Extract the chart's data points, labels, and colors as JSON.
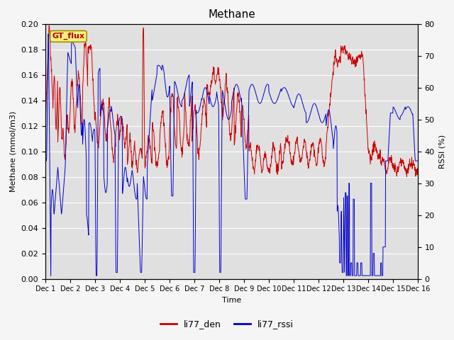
{
  "title": "Methane",
  "ylabel_left": "Methane (mmol/m3)",
  "ylabel_right": "RSSI (%)",
  "xlabel": "Time",
  "ylim_left": [
    0.0,
    0.2
  ],
  "ylim_right": [
    0,
    80
  ],
  "yticks_left": [
    0.0,
    0.02,
    0.04,
    0.06,
    0.08,
    0.1,
    0.12,
    0.14,
    0.16,
    0.18,
    0.2
  ],
  "yticks_right": [
    0,
    10,
    20,
    30,
    40,
    50,
    60,
    70,
    80
  ],
  "xtick_labels": [
    "Dec 1",
    "Dec 2",
    "Dec 3",
    "Dec 4",
    "Dec 5",
    "Dec 6",
    "Dec 7",
    "Dec 8",
    "Dec 9",
    "Dec 10",
    "Dec 11",
    "Dec 12",
    "Dec 13",
    "Dec 14",
    "Dec 15",
    "Dec 16"
  ],
  "color_red": "#cc0000",
  "color_blue": "#0000cc",
  "gt_flux_label": "GT_flux",
  "legend_items": [
    "li77_den",
    "li77_rssi"
  ],
  "fig_bg_color": "#f5f5f5",
  "plot_bg_color": "#e0e0e0",
  "title_fontsize": 11,
  "axis_fontsize": 8,
  "tick_fontsize": 8,
  "legend_fontsize": 9,
  "n_days": 15,
  "n_per_day": 96
}
